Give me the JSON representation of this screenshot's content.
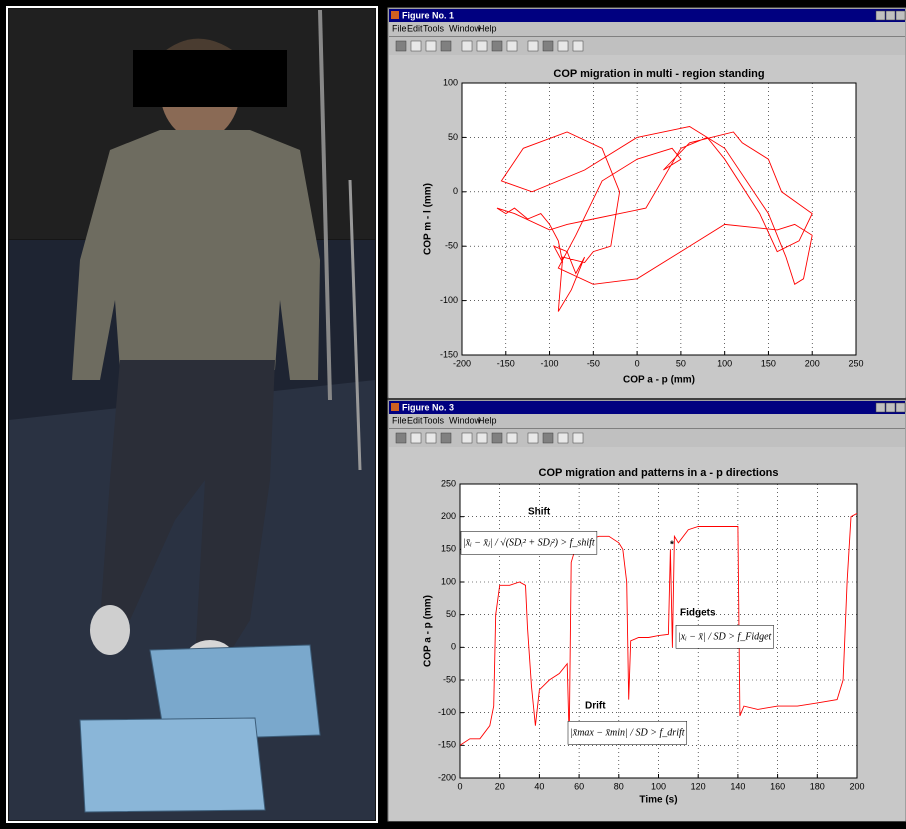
{
  "windows": [
    {
      "title": "Figure No. 1",
      "menu": [
        "File",
        "Edit",
        "Tools",
        "Window",
        "Help"
      ]
    },
    {
      "title": "Figure No. 3",
      "menu": [
        "File",
        "Edit",
        "Tools",
        "Window",
        "Help"
      ]
    }
  ],
  "chart_data": [
    {
      "type": "line",
      "title": "COP migration in multi - region standing",
      "x_label": "COP a - p (mm)",
      "y_label": "COP m - l (mm)",
      "color": "#ff0000",
      "grid": true,
      "x": [
        -150,
        -140,
        -125,
        -110,
        -100,
        -90,
        -85,
        -95,
        -80,
        -70,
        -60,
        -75,
        -90,
        -85,
        -60,
        -50,
        -30,
        -20,
        -40,
        -80,
        -130,
        -155,
        -120,
        -60,
        0,
        60,
        100,
        150,
        170,
        180,
        190,
        200,
        180,
        160,
        100,
        50,
        0,
        -50,
        -90,
        -70,
        -40,
        0,
        40,
        50,
        30,
        60,
        110,
        120,
        150,
        165,
        200,
        185,
        160,
        140,
        100,
        80,
        50,
        10,
        -20,
        -50,
        -80,
        -100,
        -140,
        -160,
        -150
      ],
      "values": [
        -20,
        -15,
        -25,
        -20,
        -30,
        -45,
        -65,
        -50,
        -55,
        -75,
        -60,
        -90,
        -110,
        -60,
        -65,
        -55,
        -50,
        0,
        40,
        55,
        40,
        10,
        0,
        20,
        50,
        60,
        40,
        -20,
        -60,
        -85,
        -80,
        -40,
        -30,
        -35,
        -30,
        -55,
        -80,
        -85,
        -70,
        -40,
        10,
        30,
        40,
        30,
        20,
        45,
        55,
        45,
        30,
        0,
        -20,
        -45,
        -55,
        -20,
        30,
        50,
        40,
        -15,
        -20,
        -25,
        -30,
        -35,
        -20,
        -15,
        -20
      ],
      "xlim": [
        -200,
        250
      ],
      "ylim": [
        -150,
        100
      ],
      "xticks": [
        -200,
        -150,
        -100,
        -50,
        0,
        50,
        100,
        150,
        200,
        250
      ],
      "yticks": [
        -150,
        -100,
        -50,
        0,
        50,
        100
      ]
    },
    {
      "type": "line",
      "title": "COP migration and patterns in a - p directions",
      "x_label": "Time (s)",
      "y_label": "COP a - p (mm)",
      "color": "#ff0000",
      "grid": true,
      "x": [
        0,
        5,
        10,
        15,
        17,
        18,
        20,
        25,
        30,
        33,
        34,
        36,
        38,
        40,
        45,
        50,
        54,
        55,
        56,
        58,
        65,
        70,
        75,
        80,
        82,
        84,
        85,
        86,
        90,
        95,
        100,
        105,
        106,
        107,
        108,
        110,
        115,
        120,
        130,
        139,
        140,
        141,
        143,
        150,
        160,
        170,
        180,
        190,
        193,
        195,
        197,
        200
      ],
      "values": [
        -150,
        -140,
        -140,
        -120,
        -90,
        50,
        95,
        95,
        100,
        95,
        30,
        -60,
        -120,
        -65,
        -50,
        -40,
        -25,
        -140,
        130,
        150,
        165,
        170,
        170,
        160,
        150,
        100,
        -80,
        10,
        15,
        15,
        18,
        20,
        150,
        0,
        170,
        160,
        180,
        185,
        185,
        185,
        185,
        -105,
        -90,
        -95,
        -90,
        -90,
        -85,
        -80,
        -50,
        100,
        200,
        205
      ],
      "xlim": [
        0,
        200
      ],
      "ylim": [
        -200,
        250
      ],
      "xticks": [
        0,
        20,
        40,
        60,
        80,
        100,
        120,
        140,
        160,
        180,
        200
      ],
      "yticks": [
        -200,
        -150,
        -100,
        -50,
        0,
        50,
        100,
        150,
        200,
        250
      ],
      "annotations": [
        "Shift",
        "Drift",
        "Fidgets",
        "*"
      ],
      "formulas": [
        "|x̄ᵢ − x̄ⱼ| / √(SDᵢ² + SDⱼ²) > f_shift",
        "|x̄max − x̄min| / SD > f_drift",
        "|xᵢ − x̄| / SD > f_Fidget"
      ]
    }
  ]
}
